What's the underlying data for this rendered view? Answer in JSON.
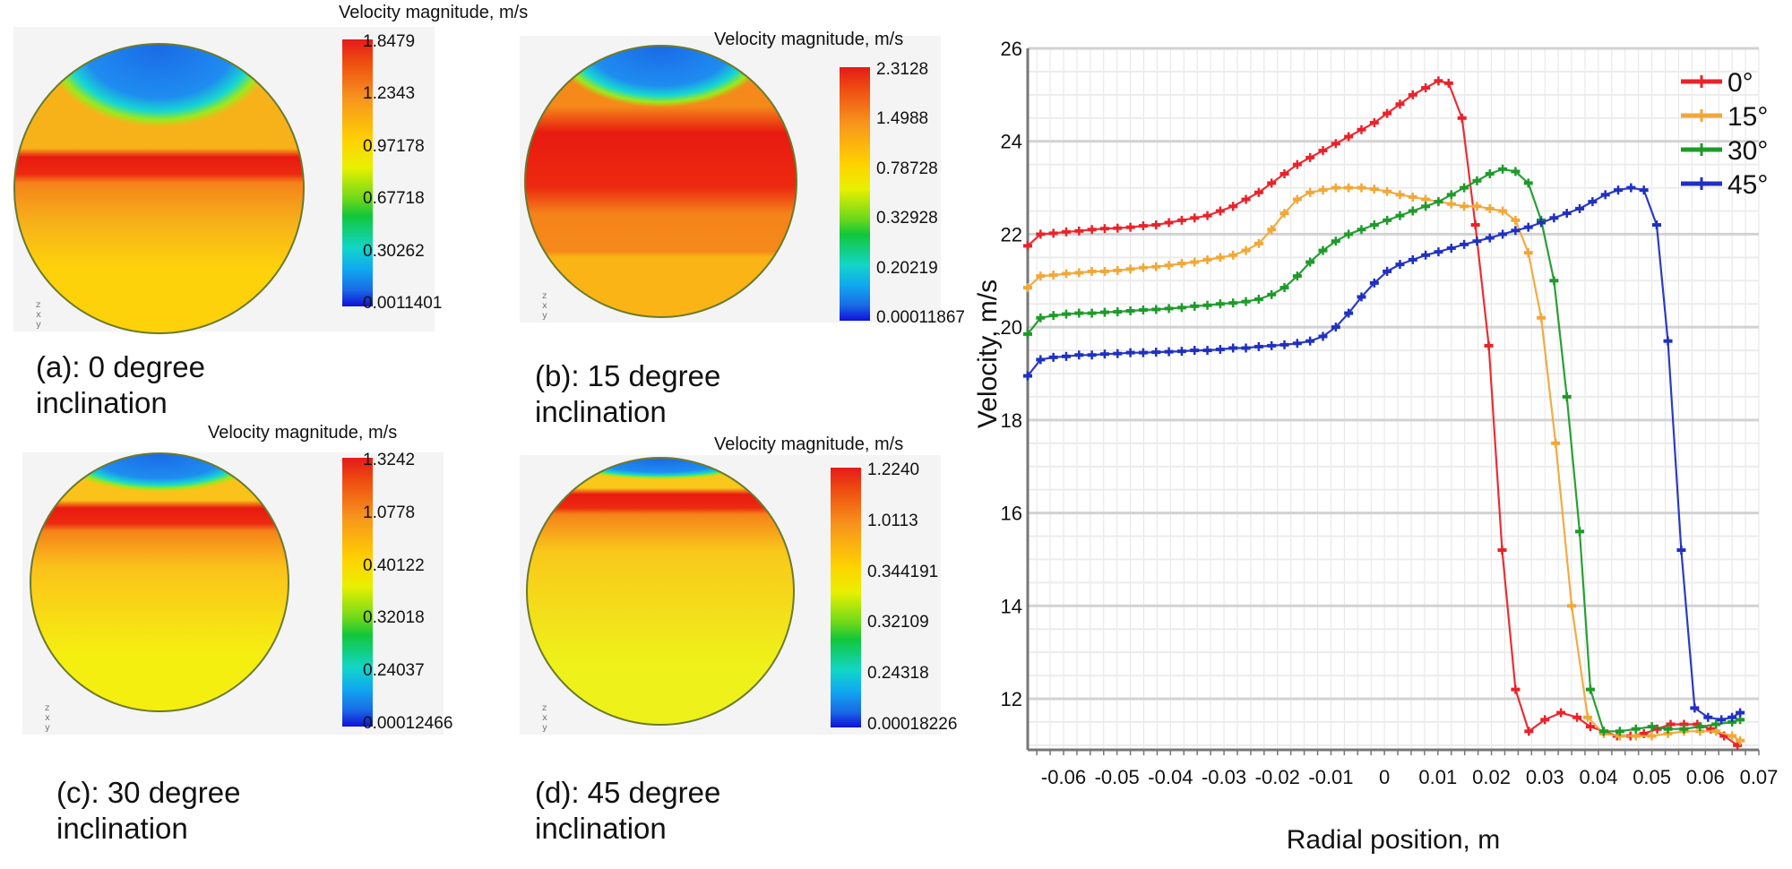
{
  "panels": [
    {
      "id": "a",
      "caption_line1": "(a): 0 degree",
      "caption_line2": "inclination",
      "colorbar_title": "Velocity magnitude, m/s",
      "colorbar_labels": [
        "1.8479",
        "1.2343",
        "0.97178",
        "0.67718",
        "0.30262",
        "0.0011401"
      ],
      "axis_triad": "z x y",
      "field": {
        "blue_cap_depth": 0.33,
        "red_band_center": 0.42,
        "red_band_width": 0.06,
        "body": "#f7b21a",
        "lower": "#fdd20a"
      }
    },
    {
      "id": "b",
      "caption_line1": "(b): 15 degree",
      "caption_line2": "inclination",
      "colorbar_title": "Velocity magnitude, m/s",
      "colorbar_labels": [
        "2.3128",
        "1.4988",
        "0.78728",
        "0.32928",
        "0.20219",
        "0.00011867"
      ],
      "axis_triad": "z x y",
      "field": {
        "blue_cap_depth": 0.26,
        "red_band_center": 0.42,
        "red_band_width": 0.2,
        "body": "#f58a1a",
        "lower": "#fab416"
      }
    },
    {
      "id": "c",
      "caption_line1": "(c): 30 degree",
      "caption_line2": "inclination",
      "colorbar_title": "Velocity magnitude, m/s",
      "colorbar_labels": [
        "1.3242",
        "1.0778",
        "0.40122",
        "0.32018",
        "0.24037",
        "0.00012466"
      ],
      "axis_triad": "z x y",
      "field": {
        "blue_cap_depth": 0.17,
        "red_band_center": 0.24,
        "red_band_width": 0.06,
        "body": "#fbc21a",
        "lower": "#f5ef10"
      }
    },
    {
      "id": "d",
      "caption_line1": "(d): 45 degree",
      "caption_line2": "inclination",
      "colorbar_title": "Velocity magnitude, m/s",
      "colorbar_labels": [
        "1.2240",
        "1.0113",
        "0.344191",
        "0.32109",
        "0.24318",
        "0.00018226"
      ],
      "axis_triad": "z x y",
      "field": {
        "blue_cap_depth": 0.09,
        "red_band_center": 0.16,
        "red_band_width": 0.05,
        "body": "#f9c81a",
        "lower": "#eef21a"
      }
    }
  ],
  "chart_data": {
    "type": "line",
    "title": "",
    "xlabel": "Radial position, m",
    "ylabel": "Velocity, m/s",
    "xlim": [
      -0.0667,
      0.07
    ],
    "ylim": [
      10.9,
      26
    ],
    "xticks": [
      -0.06,
      -0.05,
      -0.04,
      -0.03,
      -0.02,
      -0.01,
      0,
      0.01,
      0.02,
      0.03,
      0.04,
      0.05,
      0.06,
      0.07
    ],
    "xtick_labels": [
      "-0.06",
      "-0.05",
      "-0.04",
      "-0.03",
      "-0.02",
      "-0.01",
      "0",
      "0.01",
      "0.02",
      "0.03",
      "0.04",
      "0.05",
      "0.06",
      "0.07"
    ],
    "yticks": [
      12,
      14,
      16,
      18,
      20,
      22,
      24,
      26
    ],
    "ytick_labels": [
      "12",
      "14",
      "16",
      "18",
      "20",
      "22",
      "24",
      "26"
    ],
    "grid": true,
    "legend_position": "top-right",
    "series": [
      {
        "name": "0°",
        "color": "#e8232a",
        "x": [
          -0.0667,
          -0.0643,
          -0.0619,
          -0.0595,
          -0.0571,
          -0.0547,
          -0.0523,
          -0.0499,
          -0.0475,
          -0.0451,
          -0.0427,
          -0.0403,
          -0.0379,
          -0.0355,
          -0.0331,
          -0.0307,
          -0.0283,
          -0.0259,
          -0.0235,
          -0.0211,
          -0.0187,
          -0.0163,
          -0.0139,
          -0.0115,
          -0.0091,
          -0.0067,
          -0.0043,
          -0.0019,
          0.0005,
          0.0029,
          0.0053,
          0.0077,
          0.0101,
          0.012,
          0.0145,
          0.017,
          0.0195,
          0.022,
          0.0245,
          0.027,
          0.03,
          0.033,
          0.036,
          0.0385,
          0.041,
          0.0435,
          0.046,
          0.0485,
          0.051,
          0.0535,
          0.056,
          0.0585,
          0.061,
          0.0635,
          0.066
        ],
        "y": [
          21.75,
          22.0,
          22.02,
          22.05,
          22.07,
          22.1,
          22.12,
          22.13,
          22.15,
          22.18,
          22.2,
          22.25,
          22.3,
          22.35,
          22.4,
          22.5,
          22.6,
          22.75,
          22.9,
          23.1,
          23.3,
          23.5,
          23.65,
          23.8,
          23.95,
          24.1,
          24.25,
          24.4,
          24.6,
          24.8,
          25.0,
          25.15,
          25.3,
          25.25,
          24.5,
          22.2,
          19.6,
          15.2,
          12.2,
          11.3,
          11.55,
          11.7,
          11.6,
          11.4,
          11.3,
          11.2,
          11.2,
          11.25,
          11.35,
          11.45,
          11.45,
          11.45,
          11.35,
          11.2,
          11.0
        ]
      },
      {
        "name": "15°",
        "color": "#f0a838",
        "x": [
          -0.0667,
          -0.0643,
          -0.0619,
          -0.0595,
          -0.0571,
          -0.0547,
          -0.0523,
          -0.0499,
          -0.0475,
          -0.0451,
          -0.0427,
          -0.0403,
          -0.0379,
          -0.0355,
          -0.0331,
          -0.0307,
          -0.0283,
          -0.0259,
          -0.0235,
          -0.0211,
          -0.0187,
          -0.0163,
          -0.0139,
          -0.0115,
          -0.0091,
          -0.0067,
          -0.0043,
          -0.0019,
          0.0005,
          0.0029,
          0.0053,
          0.0077,
          0.0101,
          0.0125,
          0.0149,
          0.0173,
          0.0197,
          0.0221,
          0.0245,
          0.0269,
          0.0293,
          0.032,
          0.035,
          0.038,
          0.041,
          0.044,
          0.047,
          0.05,
          0.053,
          0.056,
          0.059,
          0.062,
          0.065,
          0.0665
        ],
        "y": [
          20.85,
          21.1,
          21.12,
          21.15,
          21.17,
          21.2,
          21.2,
          21.22,
          21.25,
          21.28,
          21.3,
          21.33,
          21.37,
          21.4,
          21.45,
          21.5,
          21.55,
          21.65,
          21.8,
          22.1,
          22.45,
          22.75,
          22.9,
          22.95,
          23.0,
          23.0,
          23.0,
          22.97,
          22.92,
          22.85,
          22.8,
          22.75,
          22.7,
          22.65,
          22.6,
          22.6,
          22.55,
          22.5,
          22.3,
          21.6,
          20.2,
          17.5,
          14.0,
          11.6,
          11.25,
          11.2,
          11.2,
          11.2,
          11.25,
          11.3,
          11.3,
          11.3,
          11.2,
          11.1
        ]
      },
      {
        "name": "30°",
        "color": "#1e9a2a",
        "x": [
          -0.0667,
          -0.0643,
          -0.0619,
          -0.0595,
          -0.0571,
          -0.0547,
          -0.0523,
          -0.0499,
          -0.0475,
          -0.0451,
          -0.0427,
          -0.0403,
          -0.0379,
          -0.0355,
          -0.0331,
          -0.0307,
          -0.0283,
          -0.0259,
          -0.0235,
          -0.0211,
          -0.0187,
          -0.0163,
          -0.0139,
          -0.0115,
          -0.0091,
          -0.0067,
          -0.0043,
          -0.0019,
          0.0005,
          0.0029,
          0.0053,
          0.0077,
          0.0101,
          0.0125,
          0.0149,
          0.0173,
          0.0197,
          0.0221,
          0.0245,
          0.0269,
          0.0293,
          0.0317,
          0.0341,
          0.0365,
          0.0385,
          0.041,
          0.044,
          0.047,
          0.05,
          0.053,
          0.056,
          0.059,
          0.062,
          0.065,
          0.0665
        ],
        "y": [
          19.85,
          20.2,
          20.25,
          20.28,
          20.3,
          20.3,
          20.32,
          20.33,
          20.35,
          20.37,
          20.38,
          20.4,
          20.42,
          20.45,
          20.47,
          20.5,
          20.52,
          20.55,
          20.6,
          20.7,
          20.85,
          21.1,
          21.4,
          21.65,
          21.85,
          22.0,
          22.1,
          22.2,
          22.3,
          22.4,
          22.5,
          22.6,
          22.7,
          22.85,
          23.0,
          23.15,
          23.3,
          23.4,
          23.35,
          23.1,
          22.3,
          21.0,
          18.5,
          15.6,
          12.2,
          11.3,
          11.3,
          11.35,
          11.4,
          11.35,
          11.35,
          11.4,
          11.45,
          11.5,
          11.55
        ]
      },
      {
        "name": "45°",
        "color": "#2030c0",
        "x": [
          -0.0667,
          -0.0643,
          -0.0619,
          -0.0595,
          -0.0571,
          -0.0547,
          -0.0523,
          -0.0499,
          -0.0475,
          -0.0451,
          -0.0427,
          -0.0403,
          -0.0379,
          -0.0355,
          -0.0331,
          -0.0307,
          -0.0283,
          -0.0259,
          -0.0235,
          -0.0211,
          -0.0187,
          -0.0163,
          -0.0139,
          -0.0115,
          -0.0091,
          -0.0067,
          -0.0043,
          -0.0019,
          0.0005,
          0.0029,
          0.0053,
          0.0077,
          0.0101,
          0.0125,
          0.0149,
          0.0173,
          0.0197,
          0.0221,
          0.0245,
          0.0269,
          0.0293,
          0.0317,
          0.0341,
          0.0365,
          0.0389,
          0.0413,
          0.0437,
          0.0461,
          0.0485,
          0.0509,
          0.053,
          0.0555,
          0.058,
          0.0605,
          0.063,
          0.065,
          0.0665
        ],
        "y": [
          18.95,
          19.3,
          19.35,
          19.37,
          19.4,
          19.4,
          19.42,
          19.43,
          19.45,
          19.45,
          19.46,
          19.47,
          19.48,
          19.5,
          19.5,
          19.52,
          19.55,
          19.55,
          19.58,
          19.6,
          19.62,
          19.65,
          19.7,
          19.8,
          20.0,
          20.3,
          20.65,
          20.95,
          21.2,
          21.35,
          21.45,
          21.55,
          21.62,
          21.7,
          21.78,
          21.85,
          21.92,
          22.0,
          22.08,
          22.15,
          22.25,
          22.35,
          22.45,
          22.55,
          22.7,
          22.85,
          22.95,
          23.0,
          22.95,
          22.2,
          19.7,
          15.2,
          11.8,
          11.6,
          11.55,
          11.6,
          11.7
        ]
      }
    ]
  }
}
